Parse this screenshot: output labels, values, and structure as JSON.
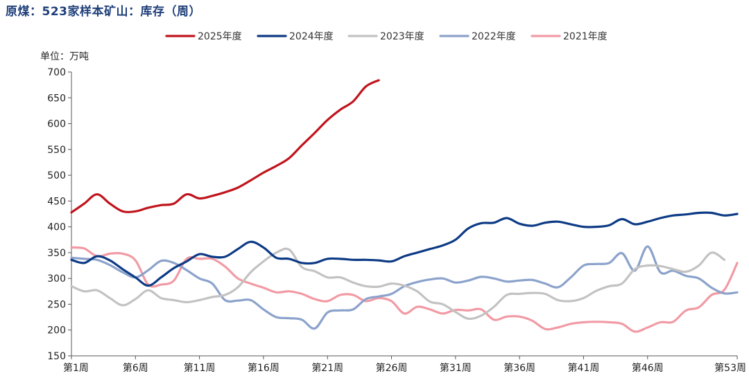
{
  "page": {
    "title": "原煤：523家样本矿山：库存（周）"
  },
  "chart_data": {
    "type": "line",
    "unit_label": "单位：万吨",
    "ylim": [
      150,
      700
    ],
    "yticks": [
      150,
      200,
      250,
      300,
      350,
      400,
      450,
      500,
      550,
      600,
      650,
      700
    ],
    "xlim": [
      1,
      53
    ],
    "xtick_labels": [
      {
        "week": 1,
        "label": "第1周"
      },
      {
        "week": 6,
        "label": "第6周"
      },
      {
        "week": 11,
        "label": "第11周"
      },
      {
        "week": 16,
        "label": "第16周"
      },
      {
        "week": 21,
        "label": "第21周"
      },
      {
        "week": 26,
        "label": "第26周"
      },
      {
        "week": 31,
        "label": "第31周"
      },
      {
        "week": 36,
        "label": "第36周"
      },
      {
        "week": 41,
        "label": "第41周"
      },
      {
        "week": 46,
        "label": "第46周"
      },
      {
        "week": 53,
        "label": "第53周"
      }
    ],
    "legend_position": "top",
    "grid": false,
    "series": [
      {
        "name": "2025年度",
        "color": "#c0141c",
        "points": [
          [
            1,
            428
          ],
          [
            2,
            445
          ],
          [
            3,
            463
          ],
          [
            4,
            445
          ],
          [
            5,
            430
          ],
          [
            6,
            430
          ],
          [
            7,
            437
          ],
          [
            8,
            442
          ],
          [
            9,
            445
          ],
          [
            10,
            463
          ],
          [
            11,
            455
          ],
          [
            12,
            460
          ],
          [
            13,
            467
          ],
          [
            14,
            476
          ],
          [
            15,
            490
          ],
          [
            16,
            505
          ],
          [
            17,
            518
          ],
          [
            18,
            533
          ],
          [
            19,
            558
          ],
          [
            20,
            582
          ],
          [
            21,
            607
          ],
          [
            22,
            627
          ],
          [
            23,
            643
          ],
          [
            24,
            672
          ],
          [
            25,
            684
          ]
        ]
      },
      {
        "name": "2024年度",
        "color": "#0c3a85",
        "points": [
          [
            1,
            336
          ],
          [
            2,
            330
          ],
          [
            3,
            343
          ],
          [
            4,
            335
          ],
          [
            5,
            318
          ],
          [
            6,
            302
          ],
          [
            7,
            286
          ],
          [
            8,
            302
          ],
          [
            9,
            320
          ],
          [
            10,
            333
          ],
          [
            11,
            347
          ],
          [
            12,
            342
          ],
          [
            13,
            342
          ],
          [
            14,
            357
          ],
          [
            15,
            371
          ],
          [
            16,
            360
          ],
          [
            17,
            340
          ],
          [
            18,
            338
          ],
          [
            19,
            330
          ],
          [
            20,
            330
          ],
          [
            21,
            338
          ],
          [
            22,
            338
          ],
          [
            23,
            336
          ],
          [
            24,
            336
          ],
          [
            25,
            335
          ],
          [
            26,
            333
          ],
          [
            27,
            343
          ],
          [
            28,
            350
          ],
          [
            29,
            357
          ],
          [
            30,
            364
          ],
          [
            31,
            375
          ],
          [
            32,
            397
          ],
          [
            33,
            407
          ],
          [
            34,
            408
          ],
          [
            35,
            417
          ],
          [
            36,
            406
          ],
          [
            37,
            402
          ],
          [
            38,
            408
          ],
          [
            39,
            410
          ],
          [
            40,
            405
          ],
          [
            41,
            400
          ],
          [
            42,
            400
          ],
          [
            43,
            403
          ],
          [
            44,
            415
          ],
          [
            45,
            405
          ],
          [
            46,
            410
          ],
          [
            47,
            417
          ],
          [
            48,
            422
          ],
          [
            49,
            424
          ],
          [
            50,
            427
          ],
          [
            51,
            427
          ],
          [
            52,
            422
          ],
          [
            53,
            425
          ]
        ]
      },
      {
        "name": "2023年度",
        "color": "#c2c2c2",
        "points": [
          [
            1,
            285
          ],
          [
            2,
            275
          ],
          [
            3,
            277
          ],
          [
            4,
            262
          ],
          [
            5,
            248
          ],
          [
            6,
            260
          ],
          [
            7,
            277
          ],
          [
            8,
            262
          ],
          [
            9,
            258
          ],
          [
            10,
            254
          ],
          [
            11,
            258
          ],
          [
            12,
            264
          ],
          [
            13,
            268
          ],
          [
            14,
            283
          ],
          [
            15,
            312
          ],
          [
            16,
            333
          ],
          [
            17,
            350
          ],
          [
            18,
            356
          ],
          [
            19,
            322
          ],
          [
            20,
            314
          ],
          [
            21,
            302
          ],
          [
            22,
            302
          ],
          [
            23,
            292
          ],
          [
            24,
            285
          ],
          [
            25,
            284
          ],
          [
            26,
            290
          ],
          [
            27,
            286
          ],
          [
            28,
            275
          ],
          [
            29,
            255
          ],
          [
            30,
            250
          ],
          [
            31,
            235
          ],
          [
            32,
            222
          ],
          [
            33,
            228
          ],
          [
            34,
            245
          ],
          [
            35,
            268
          ],
          [
            36,
            270
          ],
          [
            37,
            272
          ],
          [
            38,
            270
          ],
          [
            39,
            258
          ],
          [
            40,
            256
          ],
          [
            41,
            262
          ],
          [
            42,
            276
          ],
          [
            43,
            285
          ],
          [
            44,
            290
          ],
          [
            45,
            318
          ],
          [
            46,
            325
          ],
          [
            47,
            324
          ],
          [
            48,
            318
          ],
          [
            49,
            313
          ],
          [
            50,
            325
          ],
          [
            51,
            350
          ],
          [
            52,
            336
          ]
        ]
      },
      {
        "name": "2022年度",
        "color": "#8ba2cb",
        "points": [
          [
            1,
            340
          ],
          [
            2,
            338
          ],
          [
            3,
            336
          ],
          [
            4,
            326
          ],
          [
            5,
            312
          ],
          [
            6,
            302
          ],
          [
            7,
            316
          ],
          [
            8,
            334
          ],
          [
            9,
            330
          ],
          [
            10,
            316
          ],
          [
            11,
            300
          ],
          [
            12,
            290
          ],
          [
            13,
            258
          ],
          [
            14,
            257
          ],
          [
            15,
            258
          ],
          [
            16,
            240
          ],
          [
            17,
            225
          ],
          [
            18,
            223
          ],
          [
            19,
            220
          ],
          [
            20,
            203
          ],
          [
            21,
            234
          ],
          [
            22,
            238
          ],
          [
            23,
            240
          ],
          [
            24,
            260
          ],
          [
            25,
            265
          ],
          [
            26,
            270
          ],
          [
            27,
            285
          ],
          [
            28,
            293
          ],
          [
            29,
            298
          ],
          [
            30,
            300
          ],
          [
            31,
            292
          ],
          [
            32,
            296
          ],
          [
            33,
            303
          ],
          [
            34,
            300
          ],
          [
            35,
            294
          ],
          [
            36,
            296
          ],
          [
            37,
            297
          ],
          [
            38,
            290
          ],
          [
            39,
            283
          ],
          [
            40,
            302
          ],
          [
            41,
            325
          ],
          [
            42,
            328
          ],
          [
            43,
            330
          ],
          [
            44,
            349
          ],
          [
            45,
            315
          ],
          [
            46,
            362
          ],
          [
            47,
            312
          ],
          [
            48,
            315
          ],
          [
            49,
            305
          ],
          [
            50,
            300
          ],
          [
            51,
            282
          ],
          [
            52,
            271
          ],
          [
            53,
            273
          ]
        ]
      },
      {
        "name": "2021年度",
        "color": "#f19aa4",
        "points": [
          [
            1,
            360
          ],
          [
            2,
            358
          ],
          [
            3,
            343
          ],
          [
            4,
            348
          ],
          [
            5,
            348
          ],
          [
            6,
            335
          ],
          [
            7,
            288
          ],
          [
            8,
            288
          ],
          [
            9,
            296
          ],
          [
            10,
            338
          ],
          [
            11,
            338
          ],
          [
            12,
            338
          ],
          [
            13,
            323
          ],
          [
            14,
            300
          ],
          [
            15,
            290
          ],
          [
            16,
            282
          ],
          [
            17,
            273
          ],
          [
            18,
            275
          ],
          [
            19,
            270
          ],
          [
            20,
            260
          ],
          [
            21,
            256
          ],
          [
            22,
            268
          ],
          [
            23,
            268
          ],
          [
            24,
            256
          ],
          [
            25,
            262
          ],
          [
            26,
            256
          ],
          [
            27,
            232
          ],
          [
            28,
            245
          ],
          [
            29,
            240
          ],
          [
            30,
            232
          ],
          [
            31,
            239
          ],
          [
            32,
            238
          ],
          [
            33,
            240
          ],
          [
            34,
            220
          ],
          [
            35,
            226
          ],
          [
            36,
            226
          ],
          [
            37,
            218
          ],
          [
            38,
            202
          ],
          [
            39,
            205
          ],
          [
            40,
            212
          ],
          [
            41,
            215
          ],
          [
            42,
            216
          ],
          [
            43,
            215
          ],
          [
            44,
            212
          ],
          [
            45,
            197
          ],
          [
            46,
            205
          ],
          [
            47,
            215
          ],
          [
            48,
            216
          ],
          [
            49,
            238
          ],
          [
            50,
            244
          ],
          [
            51,
            268
          ],
          [
            52,
            278
          ],
          [
            53,
            330
          ]
        ]
      }
    ]
  }
}
